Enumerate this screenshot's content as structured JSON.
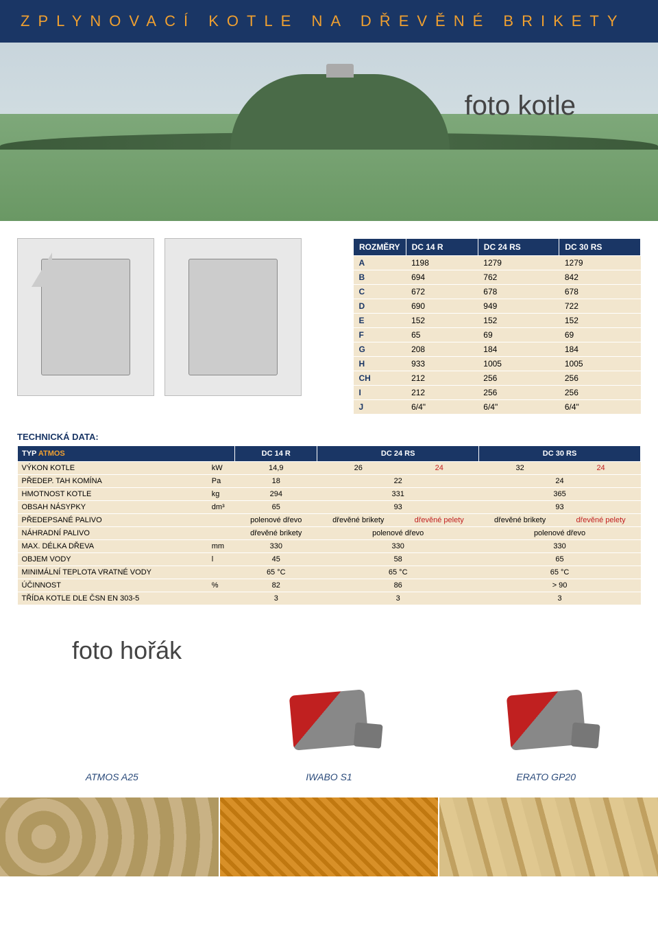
{
  "header": {
    "title": "ZPLYNOVACÍ KOTLE NA DŘEVĚNÉ BRIKETY"
  },
  "hero": {
    "caption": "foto kotle"
  },
  "colors": {
    "navy": "#1a3665",
    "gold": "#f0a030",
    "row_bg": "#f2e6ce",
    "red": "#c02020"
  },
  "dimensions": {
    "header": [
      "ROZMĚRY",
      "DC 14 R",
      "DC 24 RS",
      "DC 30 RS"
    ],
    "rows": [
      [
        "A",
        "1198",
        "1279",
        "1279"
      ],
      [
        "B",
        "694",
        "762",
        "842"
      ],
      [
        "C",
        "672",
        "678",
        "678"
      ],
      [
        "D",
        "690",
        "949",
        "722"
      ],
      [
        "E",
        "152",
        "152",
        "152"
      ],
      [
        "F",
        "65",
        "69",
        "69"
      ],
      [
        "G",
        "208",
        "184",
        "184"
      ],
      [
        "H",
        "933",
        "1005",
        "1005"
      ],
      [
        "CH",
        "212",
        "256",
        "256"
      ],
      [
        "I",
        "212",
        "256",
        "256"
      ],
      [
        "J",
        "6/4\"",
        "6/4\"",
        "6/4\""
      ]
    ]
  },
  "tech_label": "TECHNICKÁ DATA:",
  "tech": {
    "header": {
      "label_prefix": "TYP",
      "label_brand": "ATMOS",
      "cols": [
        "DC 14 R",
        "DC 24 RS",
        "DC 30 RS"
      ]
    },
    "rows": [
      {
        "label": "VÝKON KOTLE",
        "unit": "kW",
        "c1": "14,9",
        "c2a": "26",
        "c2b": "24",
        "c3a": "32",
        "c3b": "24"
      },
      {
        "label": "PŘEDEP. TAH KOMÍNA",
        "unit": "Pa",
        "c1": "18",
        "c2": "22",
        "c3": "24"
      },
      {
        "label": "HMOTNOST KOTLE",
        "unit": "kg",
        "c1": "294",
        "c2": "331",
        "c3": "365"
      },
      {
        "label": "OBSAH NÁSYPKY",
        "unit": "dm³",
        "c1": "65",
        "c2": "93",
        "c3": "93"
      },
      {
        "label": "PŘEDEPSANÉ PALIVO",
        "unit": "",
        "c1": "polenové dřevo",
        "c2a": "dřevěné brikety",
        "c2b": "dřevěné pelety",
        "c3a": "dřevěné brikety",
        "c3b": "dřevěné pelety"
      },
      {
        "label": "NÁHRADNÍ PALIVO",
        "unit": "",
        "c1": "dřevěné brikety",
        "c2": "polenové dřevo",
        "c3": "polenové dřevo"
      },
      {
        "label": "MAX. DÉLKA DŘEVA",
        "unit": "mm",
        "c1": "330",
        "c2": "330",
        "c3": "330"
      },
      {
        "label": "OBJEM VODY",
        "unit": "l",
        "c1": "45",
        "c2": "58",
        "c3": "65"
      },
      {
        "label": "MINIMÁLNÍ TEPLOTA VRATNÉ VODY",
        "unit": "",
        "c1": "65 °C",
        "c2": "65 °C",
        "c3": "65 °C"
      },
      {
        "label": "ÚČINNOST",
        "unit": "%",
        "c1": "82",
        "c2": "86",
        "c3": "> 90"
      },
      {
        "label": "TŘÍDA KOTLE DLE ČSN EN 303-5",
        "unit": "",
        "c1": "3",
        "c2": "3",
        "c3": "3"
      }
    ]
  },
  "burner_section": {
    "heading": "foto hořák",
    "burners": [
      {
        "name": "ATMOS A25"
      },
      {
        "name": "IWABO S1"
      },
      {
        "name": "ERATO GP20"
      }
    ]
  }
}
